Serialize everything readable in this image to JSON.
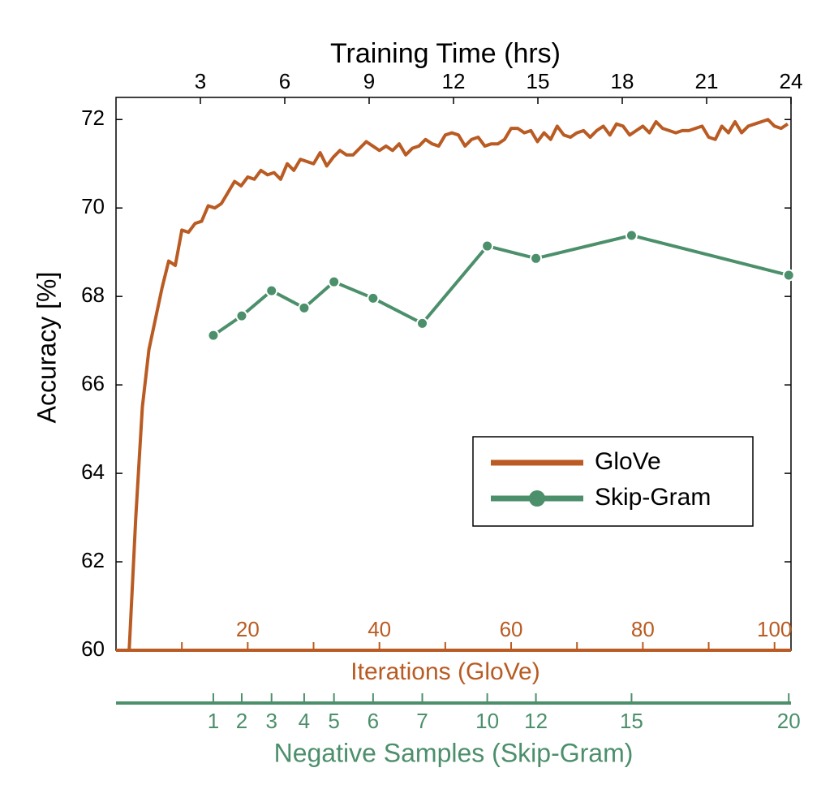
{
  "chart_data": {
    "type": "line",
    "x2label": "Training Time (hrs)",
    "x2lim": [
      0,
      24
    ],
    "x2ticks": [
      3,
      6,
      9,
      12,
      15,
      18,
      21,
      24
    ],
    "xlabel": "Iterations (GloVe)",
    "xlim": [
      0,
      102.5
    ],
    "xticks": [
      20,
      40,
      60,
      80,
      100
    ],
    "xminorticks": [
      10,
      30,
      50,
      70,
      90
    ],
    "x3label": "Negative Samples (Skip-Gram)",
    "ylabel": "Accuracy [%]",
    "ylim": [
      60,
      72.5
    ],
    "yticks": [
      60,
      62,
      64,
      66,
      68,
      70,
      72
    ],
    "legend": "lower right",
    "series": [
      {
        "name": "GloVe",
        "color": "#b95b22",
        "x_axis": "x",
        "x": [
          2,
          3,
          4,
          5,
          6,
          7,
          8,
          9,
          10,
          11,
          12,
          13,
          14,
          15,
          16,
          17,
          18,
          19,
          20,
          21,
          22,
          23,
          24,
          25,
          26,
          27,
          28,
          29,
          30,
          31,
          32,
          33,
          34,
          35,
          36,
          37,
          38,
          39,
          40,
          41,
          42,
          43,
          44,
          45,
          46,
          47,
          48,
          49,
          50,
          51,
          52,
          53,
          54,
          55,
          56,
          57,
          58,
          59,
          60,
          61,
          62,
          63,
          64,
          65,
          66,
          67,
          68,
          69,
          70,
          71,
          72,
          73,
          74,
          75,
          76,
          77,
          78,
          79,
          80,
          81,
          82,
          83,
          84,
          85,
          86,
          87,
          88,
          89,
          90,
          91,
          92,
          93,
          94,
          95,
          96,
          97,
          98,
          99,
          100,
          101,
          102
        ],
        "values": [
          60,
          63.0,
          65.5,
          66.8,
          67.5,
          68.2,
          68.8,
          68.7,
          69.5,
          69.45,
          69.65,
          69.7,
          70.05,
          70.0,
          70.1,
          70.35,
          70.6,
          70.5,
          70.7,
          70.65,
          70.85,
          70.75,
          70.8,
          70.65,
          71.0,
          70.85,
          71.1,
          71.05,
          71.0,
          71.25,
          70.95,
          71.15,
          71.3,
          71.2,
          71.2,
          71.35,
          71.5,
          71.4,
          71.3,
          71.4,
          71.3,
          71.45,
          71.2,
          71.35,
          71.4,
          71.55,
          71.45,
          71.4,
          71.65,
          71.7,
          71.65,
          71.4,
          71.55,
          71.6,
          71.4,
          71.45,
          71.45,
          71.55,
          71.8,
          71.8,
          71.7,
          71.75,
          71.5,
          71.7,
          71.55,
          71.85,
          71.65,
          71.6,
          71.7,
          71.75,
          71.6,
          71.75,
          71.85,
          71.65,
          71.9,
          71.85,
          71.65,
          71.75,
          71.85,
          71.7,
          71.95,
          71.8,
          71.75,
          71.7,
          71.75,
          71.75,
          71.8,
          71.85,
          71.6,
          71.55,
          71.85,
          71.7,
          71.95,
          71.7,
          71.85,
          71.9,
          71.95,
          72.0,
          71.85,
          71.8,
          71.9
        ]
      },
      {
        "name": "Skip-Gram",
        "color": "#4c8f6b",
        "x_axis": "x2",
        "x": [
          3.46,
          4.47,
          5.53,
          6.69,
          7.75,
          9.14,
          10.89,
          13.2,
          14.93,
          18.33,
          23.92
        ],
        "values": [
          67.12,
          67.56,
          68.13,
          67.74,
          68.33,
          67.96,
          67.39,
          69.14,
          68.86,
          69.38,
          68.48
        ],
        "negative_samples": [
          1,
          2,
          3,
          4,
          5,
          6,
          7,
          10,
          12,
          15,
          20
        ]
      }
    ]
  }
}
